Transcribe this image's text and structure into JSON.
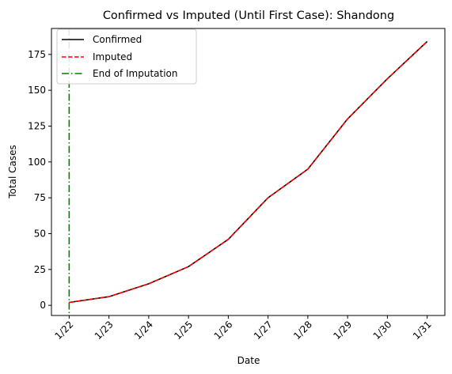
{
  "chart_data": {
    "type": "line",
    "title": "Confirmed vs Imputed (Until First Case): Shandong",
    "xlabel": "Date",
    "ylabel": "Total Cases",
    "categories": [
      "1/22",
      "1/23",
      "1/24",
      "1/25",
      "1/26",
      "1/27",
      "1/28",
      "1/29",
      "1/30",
      "1/31"
    ],
    "series": [
      {
        "name": "Confirmed",
        "color": "#000000",
        "style": "solid",
        "values": [
          2,
          6,
          15,
          27,
          46,
          75,
          95,
          130,
          158,
          184
        ]
      },
      {
        "name": "Imputed",
        "color": "#ff0000",
        "style": "dashed",
        "values": [
          2,
          6,
          15,
          27,
          46,
          75,
          95,
          130,
          158,
          184
        ]
      }
    ],
    "vline": {
      "name": "End of Imputation",
      "x": "1/22",
      "color": "#008000",
      "style": "dashdot"
    },
    "yticks": [
      0,
      25,
      50,
      75,
      100,
      125,
      150,
      175
    ],
    "ylim": [
      -7.1,
      193.1
    ],
    "legend_position": "top-left",
    "grid": false
  }
}
